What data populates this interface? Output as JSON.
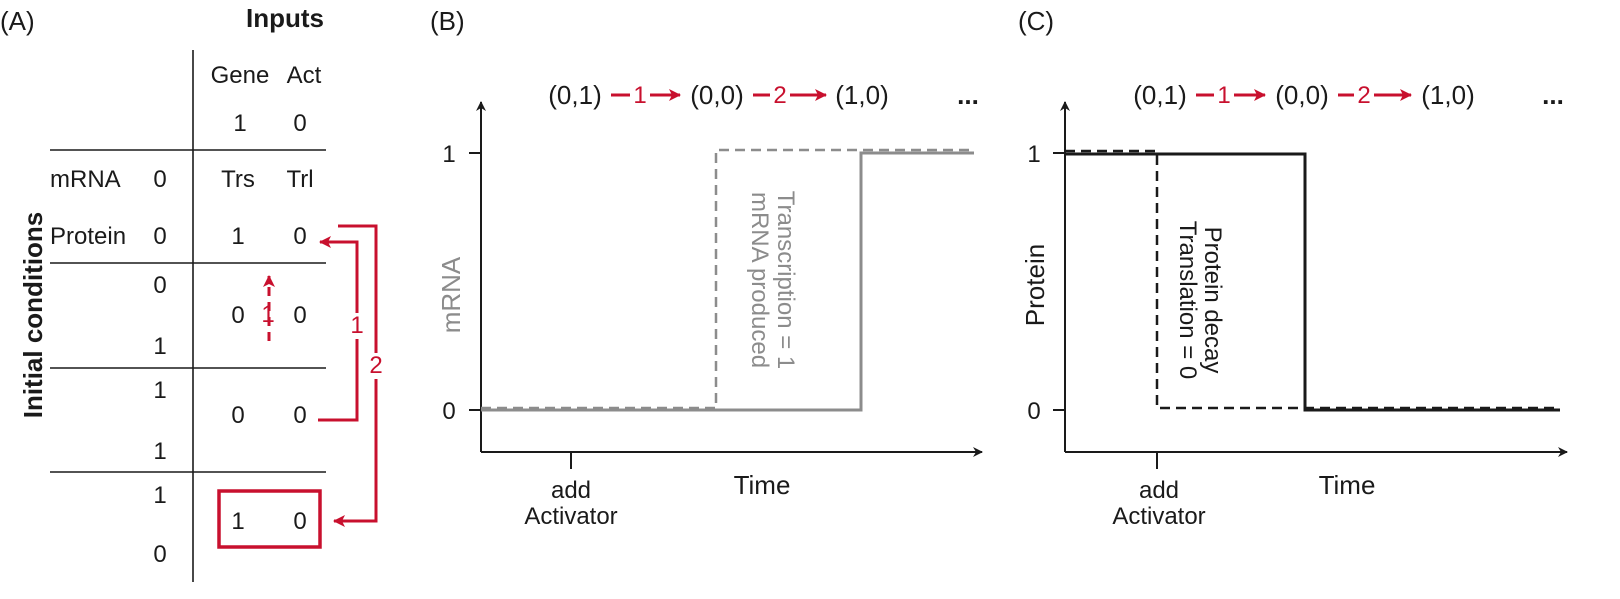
{
  "colors": {
    "accent": "#c8102e",
    "gray": "#8c8c8c",
    "ink": "#1a1a1a"
  },
  "panel_a": {
    "panel_label": "(A)",
    "inputs_title": "Inputs",
    "col_headers": [
      "Gene",
      "Act"
    ],
    "input_values": [
      "1",
      "0"
    ],
    "side_label": "Initial conditions",
    "row_labels": [
      "mRNA",
      "Protein"
    ],
    "init_values": [
      "0",
      "0"
    ],
    "output_headers": [
      "Trs",
      "Trl"
    ],
    "step0_outputs": [
      "1",
      "0"
    ],
    "step1_state": [
      "0",
      "1"
    ],
    "step1_outputs": [
      "0",
      "0"
    ],
    "step2_state": [
      "1",
      "1"
    ],
    "step2_outputs": [
      "0",
      "0"
    ],
    "step3_state": [
      "1",
      "0"
    ],
    "step3_outputs": [
      "1",
      "0"
    ],
    "arrow_labels": {
      "dashed": "1",
      "inner": "1",
      "outer": "2"
    }
  },
  "sequence": {
    "states": [
      "(0,1)",
      "(0,0)",
      "(1,0)"
    ],
    "arrow_labels": [
      "1",
      "2"
    ],
    "ellipsis": "..."
  },
  "panel_b": {
    "panel_label": "(B)",
    "ylabel": "mRNA",
    "xlabel": "Time",
    "yticks": [
      "1",
      "0"
    ],
    "xtick": [
      "add",
      "Activator"
    ],
    "annotation": [
      "mRNA produced",
      "Transcription = 1"
    ]
  },
  "panel_c": {
    "panel_label": "(C)",
    "ylabel": "Protein",
    "xlabel": "Time",
    "yticks": [
      "1",
      "0"
    ],
    "xtick": [
      "add",
      "Activator"
    ],
    "annotation": [
      "Protein decay",
      "Translation = 0"
    ]
  }
}
